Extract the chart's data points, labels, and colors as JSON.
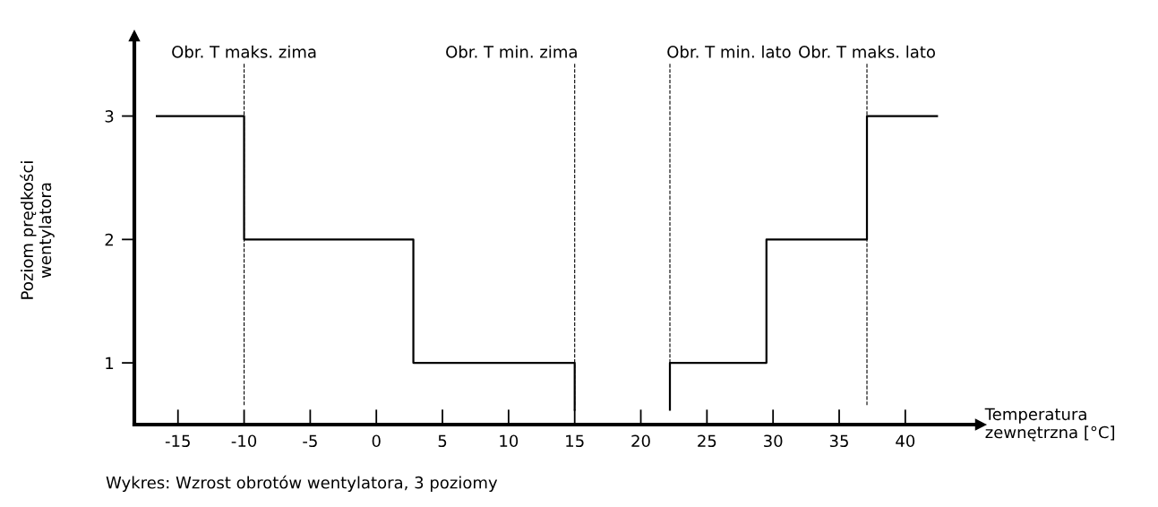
{
  "chart_data": {
    "type": "line",
    "xlabel": "Temperatura\nzewnętrzna [°C]",
    "ylabel": "Poziom prędkości\nwentylatora",
    "series": [
      {
        "color": "#000000",
        "x": [
          -16.6,
          -10,
          -10,
          2.8,
          2.8,
          15,
          15
        ],
        "values": [
          3,
          3,
          2,
          2,
          1,
          1,
          0.62
        ]
      },
      {
        "color": "#000000",
        "x": [
          22.2,
          22.2,
          29.5,
          29.5,
          37.1,
          37.1,
          42.4
        ],
        "values": [
          0.62,
          1,
          1,
          2,
          2,
          3,
          3
        ]
      }
    ],
    "xlim": [
      -18.3,
      45.7
    ],
    "xticks": [
      -15,
      -10,
      -5,
      0,
      5,
      10,
      15,
      20,
      25,
      30,
      35,
      40
    ],
    "ylim": [
      0.5,
      3.65
    ],
    "yticks": [
      1,
      2,
      3
    ],
    "ref_lines": [
      {
        "axis": "x",
        "value": -10,
        "label": "Obr. T maks. zima",
        "line_style": "dashed",
        "color": "#000000"
      },
      {
        "axis": "x",
        "value": 15,
        "label": "Obr. T min. zima",
        "line_style": "dashed",
        "color": "#000000"
      },
      {
        "axis": "x",
        "value": 22.2,
        "label": "Obr. T min. lato",
        "line_style": "dashed",
        "color": "#000000"
      },
      {
        "axis": "x",
        "value": 37.1,
        "label": "Obr. T maks. lato",
        "line_style": "dashed",
        "color": "#000000"
      }
    ],
    "annotations": [
      "Wykres: Wzrost obrotów wentylatora, 3 poziomy"
    ],
    "grid": false,
    "legend": false,
    "marker": "none",
    "line_style": "solid"
  }
}
